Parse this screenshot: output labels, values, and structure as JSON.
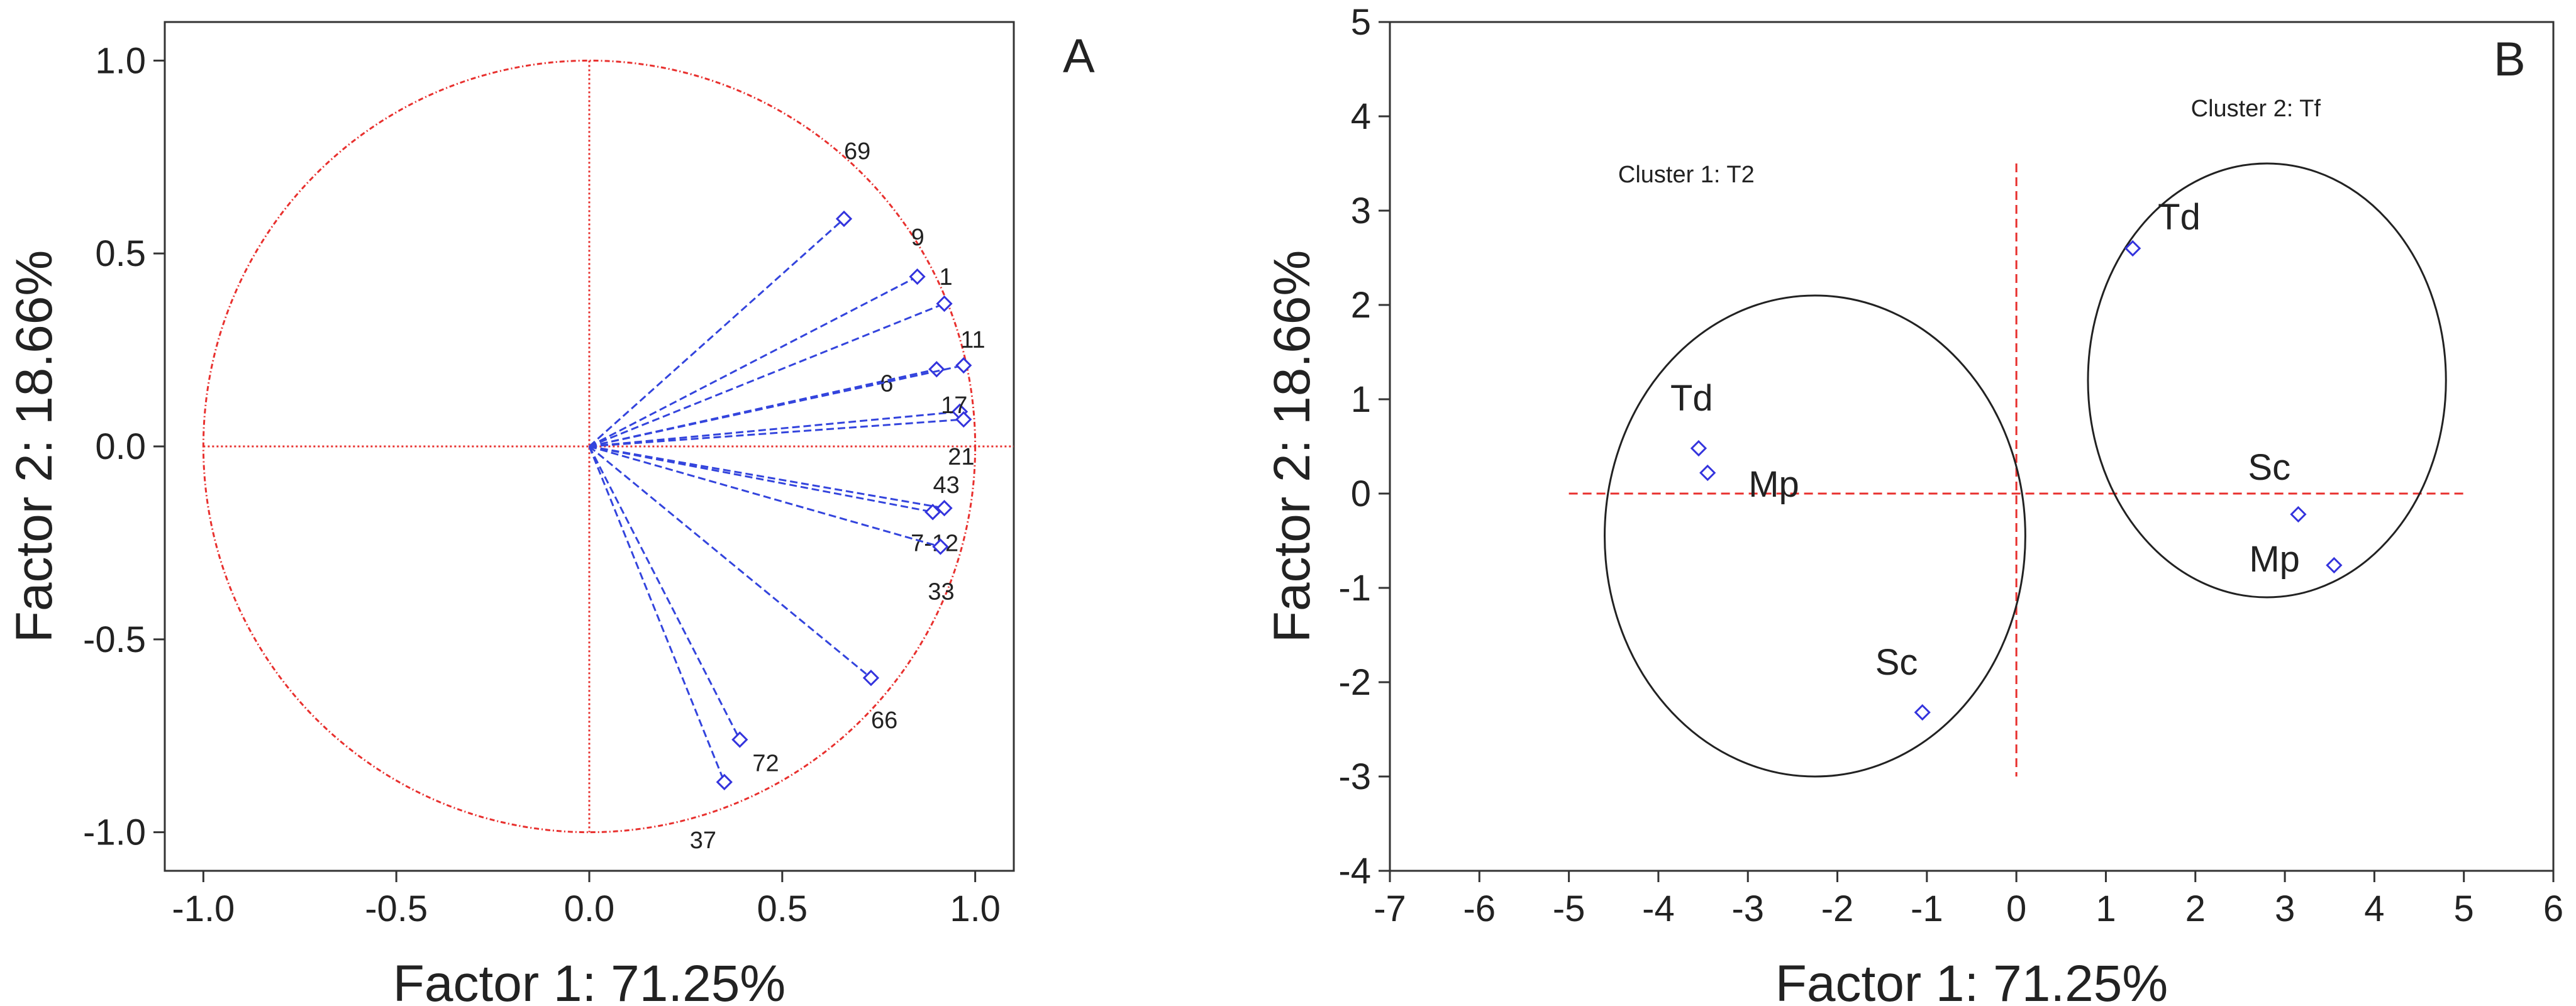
{
  "chart_data": [
    {
      "type": "scatter",
      "subtype": "loading-plot",
      "panel_label": "A",
      "xlabel": "Factor 1: 71.25%",
      "ylabel": "Factor 2: 18.66%",
      "xlim": [
        -1.1,
        1.1
      ],
      "ylim": [
        -1.1,
        1.1
      ],
      "xticks": [
        "-1.0",
        "-0.5",
        "0.0",
        "0.5",
        "1.0"
      ],
      "yticks": [
        "-1.0",
        "-0.5",
        "0.0",
        "0.5",
        "1.0"
      ],
      "unit_circle": true,
      "points": [
        {
          "label": "69",
          "x": 0.66,
          "y": 0.59
        },
        {
          "label": "9",
          "x": 0.85,
          "y": 0.44
        },
        {
          "label": "1",
          "x": 0.92,
          "y": 0.37
        },
        {
          "label": "6",
          "x": 0.9,
          "y": 0.2
        },
        {
          "label": "11",
          "x": 0.97,
          "y": 0.21
        },
        {
          "label": "17",
          "x": 0.96,
          "y": 0.09
        },
        {
          "label": "21",
          "x": 0.97,
          "y": 0.07
        },
        {
          "label": "43",
          "x": 0.92,
          "y": -0.16
        },
        {
          "label": "7-12",
          "x": 0.89,
          "y": -0.17
        },
        {
          "label": "33",
          "x": 0.91,
          "y": -0.26
        },
        {
          "label": "66",
          "x": 0.73,
          "y": -0.6
        },
        {
          "label": "72",
          "x": 0.39,
          "y": -0.76
        },
        {
          "label": "37",
          "x": 0.35,
          "y": -0.87
        }
      ]
    },
    {
      "type": "scatter",
      "panel_label": "B",
      "xlabel": "Factor 1: 71.25%",
      "ylabel": "Factor 2: 18.66%",
      "xlim": [
        -7,
        6
      ],
      "ylim": [
        -4,
        5
      ],
      "xticks": [
        "-7",
        "-6",
        "-5",
        "-4",
        "-3",
        "-2",
        "-1",
        "0",
        "1",
        "2",
        "3",
        "4",
        "5",
        "6"
      ],
      "yticks": [
        "-4",
        "-3",
        "-2",
        "-1",
        "0",
        "1",
        "2",
        "3",
        "4",
        "5"
      ],
      "clusters": [
        {
          "name": "Cluster 1: T2",
          "center": [
            -2.25,
            -0.45
          ],
          "radii": [
            2.35,
            2.55
          ],
          "points": [
            {
              "label": "Td",
              "x": -3.55,
              "y": 0.48
            },
            {
              "label": "Mp",
              "x": -3.45,
              "y": 0.22
            },
            {
              "label": "Sc",
              "x": -1.05,
              "y": -2.32
            }
          ]
        },
        {
          "name": "Cluster 2: Tf",
          "center": [
            2.8,
            1.2
          ],
          "radii": [
            2.0,
            2.3
          ],
          "points": [
            {
              "label": "Td",
              "x": 1.3,
              "y": 2.6
            },
            {
              "label": "Sc",
              "x": 3.15,
              "y": -0.22
            },
            {
              "label": "Mp",
              "x": 3.55,
              "y": -0.76
            }
          ]
        }
      ]
    }
  ]
}
